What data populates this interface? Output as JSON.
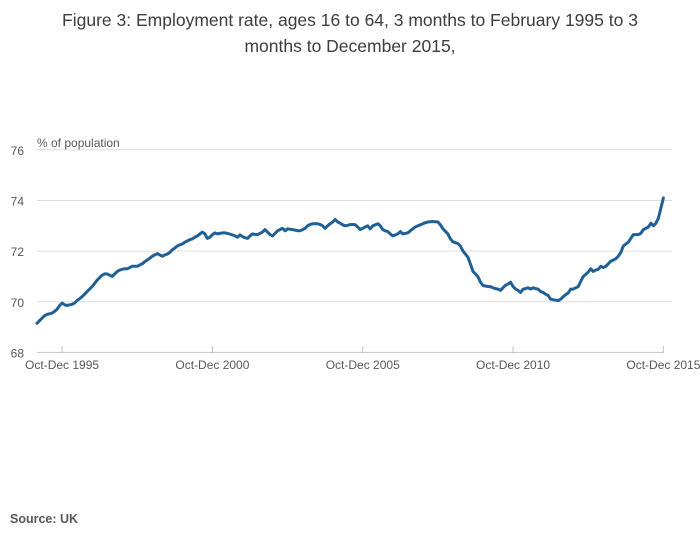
{
  "title": {
    "line1": "Figure 3: Employment rate, ages 16 to 64, 3 months to February 1995 to 3",
    "line2": "months to December 2015,"
  },
  "source": {
    "label": "Source: UK"
  },
  "chart_data": {
    "type": "line",
    "title": "Figure 3: Employment rate, ages 16 to 64, 3 months to February 1995 to 3 months to December 2015,",
    "ylabel": "% of population",
    "xlabel": "",
    "ylim": [
      68,
      76
    ],
    "yticks": [
      68,
      70,
      72,
      74,
      76
    ],
    "grid": "horizontal",
    "legend": "none",
    "line_color": "#206095",
    "axis_color": "#bfc4c8",
    "grid_color": "#d9dde1",
    "label_color": "#58585a",
    "x_start_period": "Dec-Feb 1995",
    "x_end_period": "Oct-Dec 2015",
    "frequency": "monthly rolling 3-month periods",
    "xtick_labels": [
      "Oct-Dec 1995",
      "Oct-Dec 2000",
      "Oct-Dec 2005",
      "Oct-Dec 2010",
      "Oct-Dec 2015"
    ],
    "xtick_indices": [
      10,
      70,
      130,
      190,
      250
    ],
    "series": [
      {
        "name": "Employment rate, ages 16 to 64",
        "values": [
          69.15,
          69.25,
          69.35,
          69.45,
          69.5,
          69.52,
          69.55,
          69.62,
          69.7,
          69.85,
          69.95,
          69.88,
          69.85,
          69.88,
          69.9,
          69.95,
          70.05,
          70.12,
          70.2,
          70.3,
          70.4,
          70.5,
          70.6,
          70.72,
          70.85,
          70.95,
          71.05,
          71.1,
          71.1,
          71.05,
          71.0,
          71.1,
          71.2,
          71.25,
          71.28,
          71.3,
          71.3,
          71.35,
          71.4,
          71.4,
          71.4,
          71.45,
          71.5,
          71.58,
          71.65,
          71.72,
          71.8,
          71.85,
          71.9,
          71.85,
          71.8,
          71.85,
          71.88,
          71.95,
          72.05,
          72.12,
          72.2,
          72.25,
          72.28,
          72.35,
          72.4,
          72.45,
          72.48,
          72.55,
          72.6,
          72.68,
          72.75,
          72.68,
          72.5,
          72.55,
          72.65,
          72.72,
          72.68,
          72.7,
          72.72,
          72.72,
          72.7,
          72.67,
          72.64,
          72.6,
          72.55,
          72.64,
          72.57,
          72.53,
          72.5,
          72.6,
          72.68,
          72.66,
          72.65,
          72.7,
          72.75,
          72.85,
          72.75,
          72.65,
          72.6,
          72.7,
          72.8,
          72.85,
          72.9,
          72.8,
          72.88,
          72.86,
          72.85,
          72.83,
          72.8,
          72.8,
          72.85,
          72.9,
          73.0,
          73.05,
          73.08,
          73.08,
          73.08,
          73.05,
          73.0,
          72.9,
          73.0,
          73.08,
          73.15,
          73.25,
          73.15,
          73.1,
          73.04,
          73.0,
          73.02,
          73.05,
          73.05,
          73.04,
          72.95,
          72.85,
          72.9,
          72.95,
          73.0,
          72.88,
          73.0,
          73.04,
          73.08,
          73.0,
          72.85,
          72.8,
          72.77,
          72.68,
          72.6,
          72.64,
          72.68,
          72.77,
          72.68,
          72.7,
          72.72,
          72.8,
          72.88,
          72.95,
          73.0,
          73.04,
          73.08,
          73.12,
          73.15,
          73.16,
          73.17,
          73.16,
          73.15,
          73.04,
          72.88,
          72.78,
          72.68,
          72.48,
          72.37,
          72.33,
          72.3,
          72.2,
          72.0,
          71.88,
          71.75,
          71.48,
          71.2,
          71.1,
          70.98,
          70.77,
          70.64,
          70.62,
          70.6,
          70.6,
          70.55,
          70.52,
          70.5,
          70.45,
          70.55,
          70.65,
          70.7,
          70.77,
          70.6,
          70.5,
          70.45,
          70.37,
          70.5,
          70.52,
          70.55,
          70.5,
          70.55,
          70.52,
          70.5,
          70.4,
          70.37,
          70.3,
          70.25,
          70.1,
          70.08,
          70.06,
          70.05,
          70.1,
          70.2,
          70.28,
          70.35,
          70.5,
          70.5,
          70.55,
          70.6,
          70.8,
          71.0,
          71.08,
          71.17,
          71.3,
          71.2,
          71.25,
          71.28,
          71.4,
          71.35,
          71.4,
          71.5,
          71.6,
          71.65,
          71.7,
          71.8,
          71.95,
          72.2,
          72.28,
          72.35,
          72.5,
          72.65,
          72.65,
          72.65,
          72.7,
          72.85,
          72.9,
          72.95,
          73.1,
          73.0,
          73.1,
          73.3,
          73.7,
          74.1
        ]
      }
    ]
  }
}
